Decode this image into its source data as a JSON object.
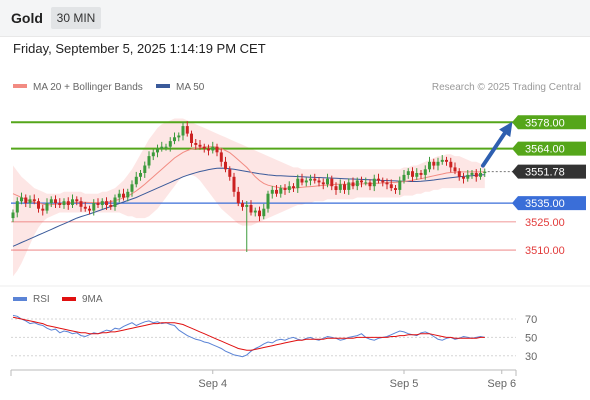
{
  "header": {
    "instrument": "Gold",
    "timeframe": "30 MIN",
    "datetime": "Friday, September 5, 2025 1:14:19 PM CET"
  },
  "legend": {
    "ma20": "MA 20 + Bollinger Bands",
    "ma50": "MA 50",
    "watermark": "Research © 2025 Trading Central",
    "rsi": "RSI",
    "ma9": "9MA"
  },
  "colors": {
    "bull": "#3c9a3c",
    "bear": "#cc2222",
    "resistance": "#55a61a",
    "support": "#3a6ed8",
    "support_line": "#e23b3b",
    "current": "#333333",
    "band": "#fbd6d3",
    "ma20": "#f28b82",
    "ma50": "#3a5a9a",
    "rsi": "#5b84d6",
    "rsi_ma": "#e01010",
    "arrow": "#2e5fb0"
  },
  "chart_data": [
    {
      "type": "candlestick",
      "title": "Gold 30 MIN",
      "x_ticks": [
        "Sep 4",
        "Sep 5",
        "Sep 6"
      ],
      "x_tick_index": [
        47,
        92,
        115
      ],
      "y_range": [
        3493,
        3592
      ],
      "levels": [
        {
          "value": 3578.0,
          "label": "3578.00",
          "kind": "resistance",
          "tag": true
        },
        {
          "value": 3564.0,
          "label": "3564.00",
          "kind": "resistance",
          "tag": true
        },
        {
          "value": 3551.78,
          "label": "3551.78",
          "kind": "current",
          "tag": true
        },
        {
          "value": 3535.0,
          "label": "3535.00",
          "kind": "support",
          "tag": true
        },
        {
          "value": 3525.0,
          "label": "3525.00",
          "kind": "support_line",
          "tag": false
        },
        {
          "value": 3510.0,
          "label": "3510.00",
          "kind": "support_line",
          "tag": false
        }
      ],
      "close": [
        3530,
        3536,
        3538,
        3535,
        3537,
        3536,
        3532,
        3531,
        3535,
        3537,
        3535,
        3534,
        3536,
        3534,
        3537,
        3536,
        3533,
        3532,
        3531,
        3535,
        3534,
        3536,
        3534,
        3533,
        3538,
        3540,
        3538,
        3541,
        3545,
        3549,
        3551,
        3555,
        3560,
        3562,
        3564,
        3565,
        3565,
        3568,
        3570,
        3571,
        3576,
        3572,
        3567,
        3566,
        3565,
        3564,
        3563,
        3565,
        3562,
        3557,
        3553,
        3549,
        3541,
        3535,
        3533,
        3534,
        3530,
        3531,
        3528,
        3532,
        3540,
        3542,
        3540,
        3543,
        3542,
        3544,
        3543,
        3548,
        3546,
        3547,
        3548,
        3547,
        3546,
        3545,
        3548,
        3544,
        3542,
        3545,
        3542,
        3546,
        3544,
        3547,
        3546,
        3546,
        3544,
        3548,
        3547,
        3546,
        3545,
        3543,
        3542,
        3547,
        3550,
        3552,
        3549,
        3551,
        3550,
        3553,
        3557,
        3555,
        3557,
        3558,
        3557,
        3554,
        3552,
        3549,
        3548,
        3550,
        3551,
        3549,
        3551,
        3551.78
      ],
      "ma20": [
        3540,
        3539,
        3538,
        3537,
        3536,
        3535.5,
        3535,
        3534.5,
        3534,
        3534.2,
        3534.4,
        3534.6,
        3535,
        3535.2,
        3535.5,
        3535.5,
        3535.5,
        3535.4,
        3535.3,
        3535.3,
        3535.3,
        3535.4,
        3535.6,
        3535.8,
        3536.3,
        3537,
        3537.8,
        3538.8,
        3540,
        3541.5,
        3543.2,
        3545,
        3547,
        3549,
        3551,
        3553,
        3555,
        3557,
        3559,
        3560.5,
        3562,
        3563,
        3563.8,
        3564.2,
        3564.5,
        3564.8,
        3565,
        3565,
        3564.7,
        3564,
        3563,
        3561.8,
        3560,
        3558,
        3556,
        3554,
        3551.5,
        3549,
        3547,
        3545.5,
        3544.5,
        3544,
        3543.5,
        3543.2,
        3543,
        3543,
        3543,
        3543.2,
        3543.4,
        3543.6,
        3543.8,
        3544,
        3544.2,
        3544.4,
        3544.6,
        3544.8,
        3545,
        3545,
        3545,
        3545,
        3545,
        3545.1,
        3545.2,
        3545.3,
        3545.4,
        3545.5,
        3545.6,
        3545.7,
        3545.8,
        3545.9,
        3546,
        3546.2,
        3546.5,
        3546.8,
        3547.2,
        3547.6,
        3548,
        3548.5,
        3549,
        3549.5,
        3550,
        3550.5,
        3551,
        3551.3,
        3551.5,
        3551.6,
        3551.6,
        3551.6,
        3551.6,
        3551.6,
        3551.6,
        3551.6
      ],
      "ma50": [
        3512,
        3513,
        3514,
        3515,
        3516,
        3517,
        3518,
        3519,
        3520,
        3521,
        3522,
        3523,
        3524,
        3525,
        3526,
        3527,
        3527.8,
        3528.5,
        3529.2,
        3530,
        3530.8,
        3531.6,
        3532.4,
        3533.2,
        3534,
        3534.8,
        3535.6,
        3536.4,
        3537.2,
        3538,
        3539,
        3540,
        3541,
        3542,
        3543,
        3544,
        3545,
        3546,
        3547,
        3548,
        3549,
        3549.8,
        3550.5,
        3551.2,
        3551.8,
        3552.3,
        3552.8,
        3553.2,
        3553.5,
        3553.6,
        3553.5,
        3553.3,
        3553,
        3552.6,
        3552.2,
        3551.8,
        3551.4,
        3551,
        3550.6,
        3550.3,
        3550,
        3549.8,
        3549.6,
        3549.5,
        3549.4,
        3549.3,
        3549.2,
        3549.1,
        3549,
        3548.9,
        3548.8,
        3548.7,
        3548.6,
        3548.5,
        3548.4,
        3548.3,
        3548.2,
        3548.1,
        3548,
        3547.9,
        3547.8,
        3547.7,
        3547.6,
        3547.5,
        3547.4,
        3547.3,
        3547.2,
        3547.1,
        3547,
        3546.9,
        3546.8,
        3546.7,
        3546.6,
        3546.5,
        3546.5,
        3546.5,
        3546.6,
        3546.8,
        3547,
        3547.3,
        3547.6,
        3547.9,
        3548.2,
        3548.5,
        3548.8,
        3549,
        3549.2,
        3549.4,
        3549.6,
        3549.8,
        3550,
        3550.1
      ],
      "band_upper": [
        3555,
        3552,
        3549,
        3547,
        3545,
        3543,
        3542,
        3541,
        3540,
        3540,
        3540,
        3540,
        3541,
        3541,
        3541,
        3541,
        3541,
        3540,
        3540,
        3540,
        3540,
        3541,
        3541,
        3542,
        3543,
        3545,
        3547,
        3550,
        3553,
        3557,
        3561,
        3565,
        3569,
        3572,
        3575,
        3577,
        3578,
        3579,
        3580,
        3580,
        3580,
        3579,
        3578,
        3577,
        3576,
        3575,
        3574,
        3573,
        3572,
        3571,
        3570,
        3569,
        3568,
        3567,
        3566,
        3565,
        3564,
        3563,
        3562,
        3561,
        3560,
        3559,
        3558,
        3557,
        3556,
        3555,
        3554,
        3554,
        3553,
        3553,
        3553,
        3553,
        3553,
        3553,
        3553,
        3553,
        3553,
        3553,
        3553,
        3553,
        3553,
        3553,
        3553,
        3553,
        3553,
        3553,
        3553,
        3553,
        3553,
        3553,
        3553,
        3553,
        3554,
        3554,
        3555,
        3555,
        3556,
        3557,
        3558,
        3559,
        3560,
        3560,
        3561,
        3561,
        3560,
        3560,
        3559,
        3558,
        3557,
        3557,
        3556,
        3556
      ],
      "band_lower": [
        3496,
        3499,
        3503,
        3508,
        3513,
        3518,
        3522,
        3525,
        3527,
        3528,
        3529,
        3530,
        3530,
        3530,
        3530,
        3530,
        3530,
        3530,
        3530,
        3530,
        3530,
        3530,
        3530,
        3530,
        3530,
        3530,
        3529,
        3528,
        3528,
        3527,
        3527,
        3527,
        3528,
        3530,
        3532,
        3535,
        3538,
        3541,
        3544,
        3547,
        3549,
        3550,
        3550,
        3549,
        3547,
        3544,
        3541,
        3538,
        3535,
        3532,
        3530,
        3528,
        3526,
        3524,
        3523,
        3523,
        3523,
        3524,
        3525,
        3526,
        3527,
        3528,
        3529,
        3530,
        3531,
        3532,
        3533,
        3534,
        3534,
        3535,
        3535,
        3536,
        3536,
        3536,
        3537,
        3537,
        3537,
        3537,
        3537,
        3537,
        3537,
        3538,
        3538,
        3538,
        3538,
        3538,
        3538,
        3538,
        3538,
        3538,
        3538,
        3538,
        3539,
        3539,
        3539,
        3540,
        3540,
        3541,
        3541,
        3542,
        3542,
        3543,
        3543,
        3543,
        3543,
        3543,
        3543,
        3543,
        3543,
        3543,
        3543,
        3543
      ]
    },
    {
      "type": "line",
      "title": "RSI",
      "y_ticks": [
        70,
        50,
        30
      ],
      "y_range": [
        20,
        82
      ],
      "series": [
        {
          "name": "RSI",
          "values": [
            74,
            73,
            70,
            68,
            65,
            66,
            64,
            63,
            60,
            58,
            59,
            55,
            57,
            56,
            54,
            55,
            52,
            51,
            53,
            55,
            54,
            56,
            58,
            57,
            60,
            59,
            62,
            64,
            66,
            63,
            65,
            67,
            68,
            66,
            67,
            65,
            66,
            64,
            63,
            58,
            55,
            52,
            50,
            48,
            47,
            45,
            44,
            42,
            40,
            38,
            35,
            33,
            31,
            30,
            29,
            31,
            35,
            38,
            40,
            43,
            45,
            44,
            47,
            48,
            47,
            49,
            50,
            48,
            47,
            49,
            50,
            48,
            47,
            49,
            51,
            50,
            49,
            47,
            48,
            50,
            51,
            52,
            54,
            50,
            48,
            47,
            49,
            50,
            51,
            53,
            55,
            57,
            56,
            54,
            53,
            52,
            55,
            56,
            54,
            51,
            48,
            47,
            49,
            50,
            48,
            49,
            51,
            50,
            49,
            50,
            51,
            50
          ]
        },
        {
          "name": "9MA",
          "values": [
            72,
            71,
            70,
            69,
            68,
            67,
            66,
            65,
            63,
            62,
            61,
            60,
            59,
            58,
            57,
            56,
            55,
            55,
            54,
            54,
            54,
            55,
            55,
            56,
            56,
            57,
            58,
            59,
            60,
            61,
            62,
            63,
            64,
            65,
            65,
            66,
            66,
            66,
            66,
            65,
            64,
            62,
            60,
            58,
            56,
            54,
            52,
            50,
            48,
            46,
            44,
            42,
            40,
            38,
            37,
            36,
            36,
            37,
            38,
            39,
            40,
            41,
            42,
            43,
            44,
            45,
            46,
            47,
            47,
            48,
            48,
            48,
            48,
            48,
            49,
            49,
            49,
            49,
            49,
            49,
            49,
            50,
            50,
            50,
            50,
            50,
            50,
            50,
            50,
            51,
            51,
            52,
            52,
            53,
            53,
            53,
            54,
            54,
            54,
            53,
            52,
            51,
            50,
            50,
            49,
            49,
            49,
            49,
            49,
            49,
            50,
            50
          ]
        }
      ]
    }
  ]
}
